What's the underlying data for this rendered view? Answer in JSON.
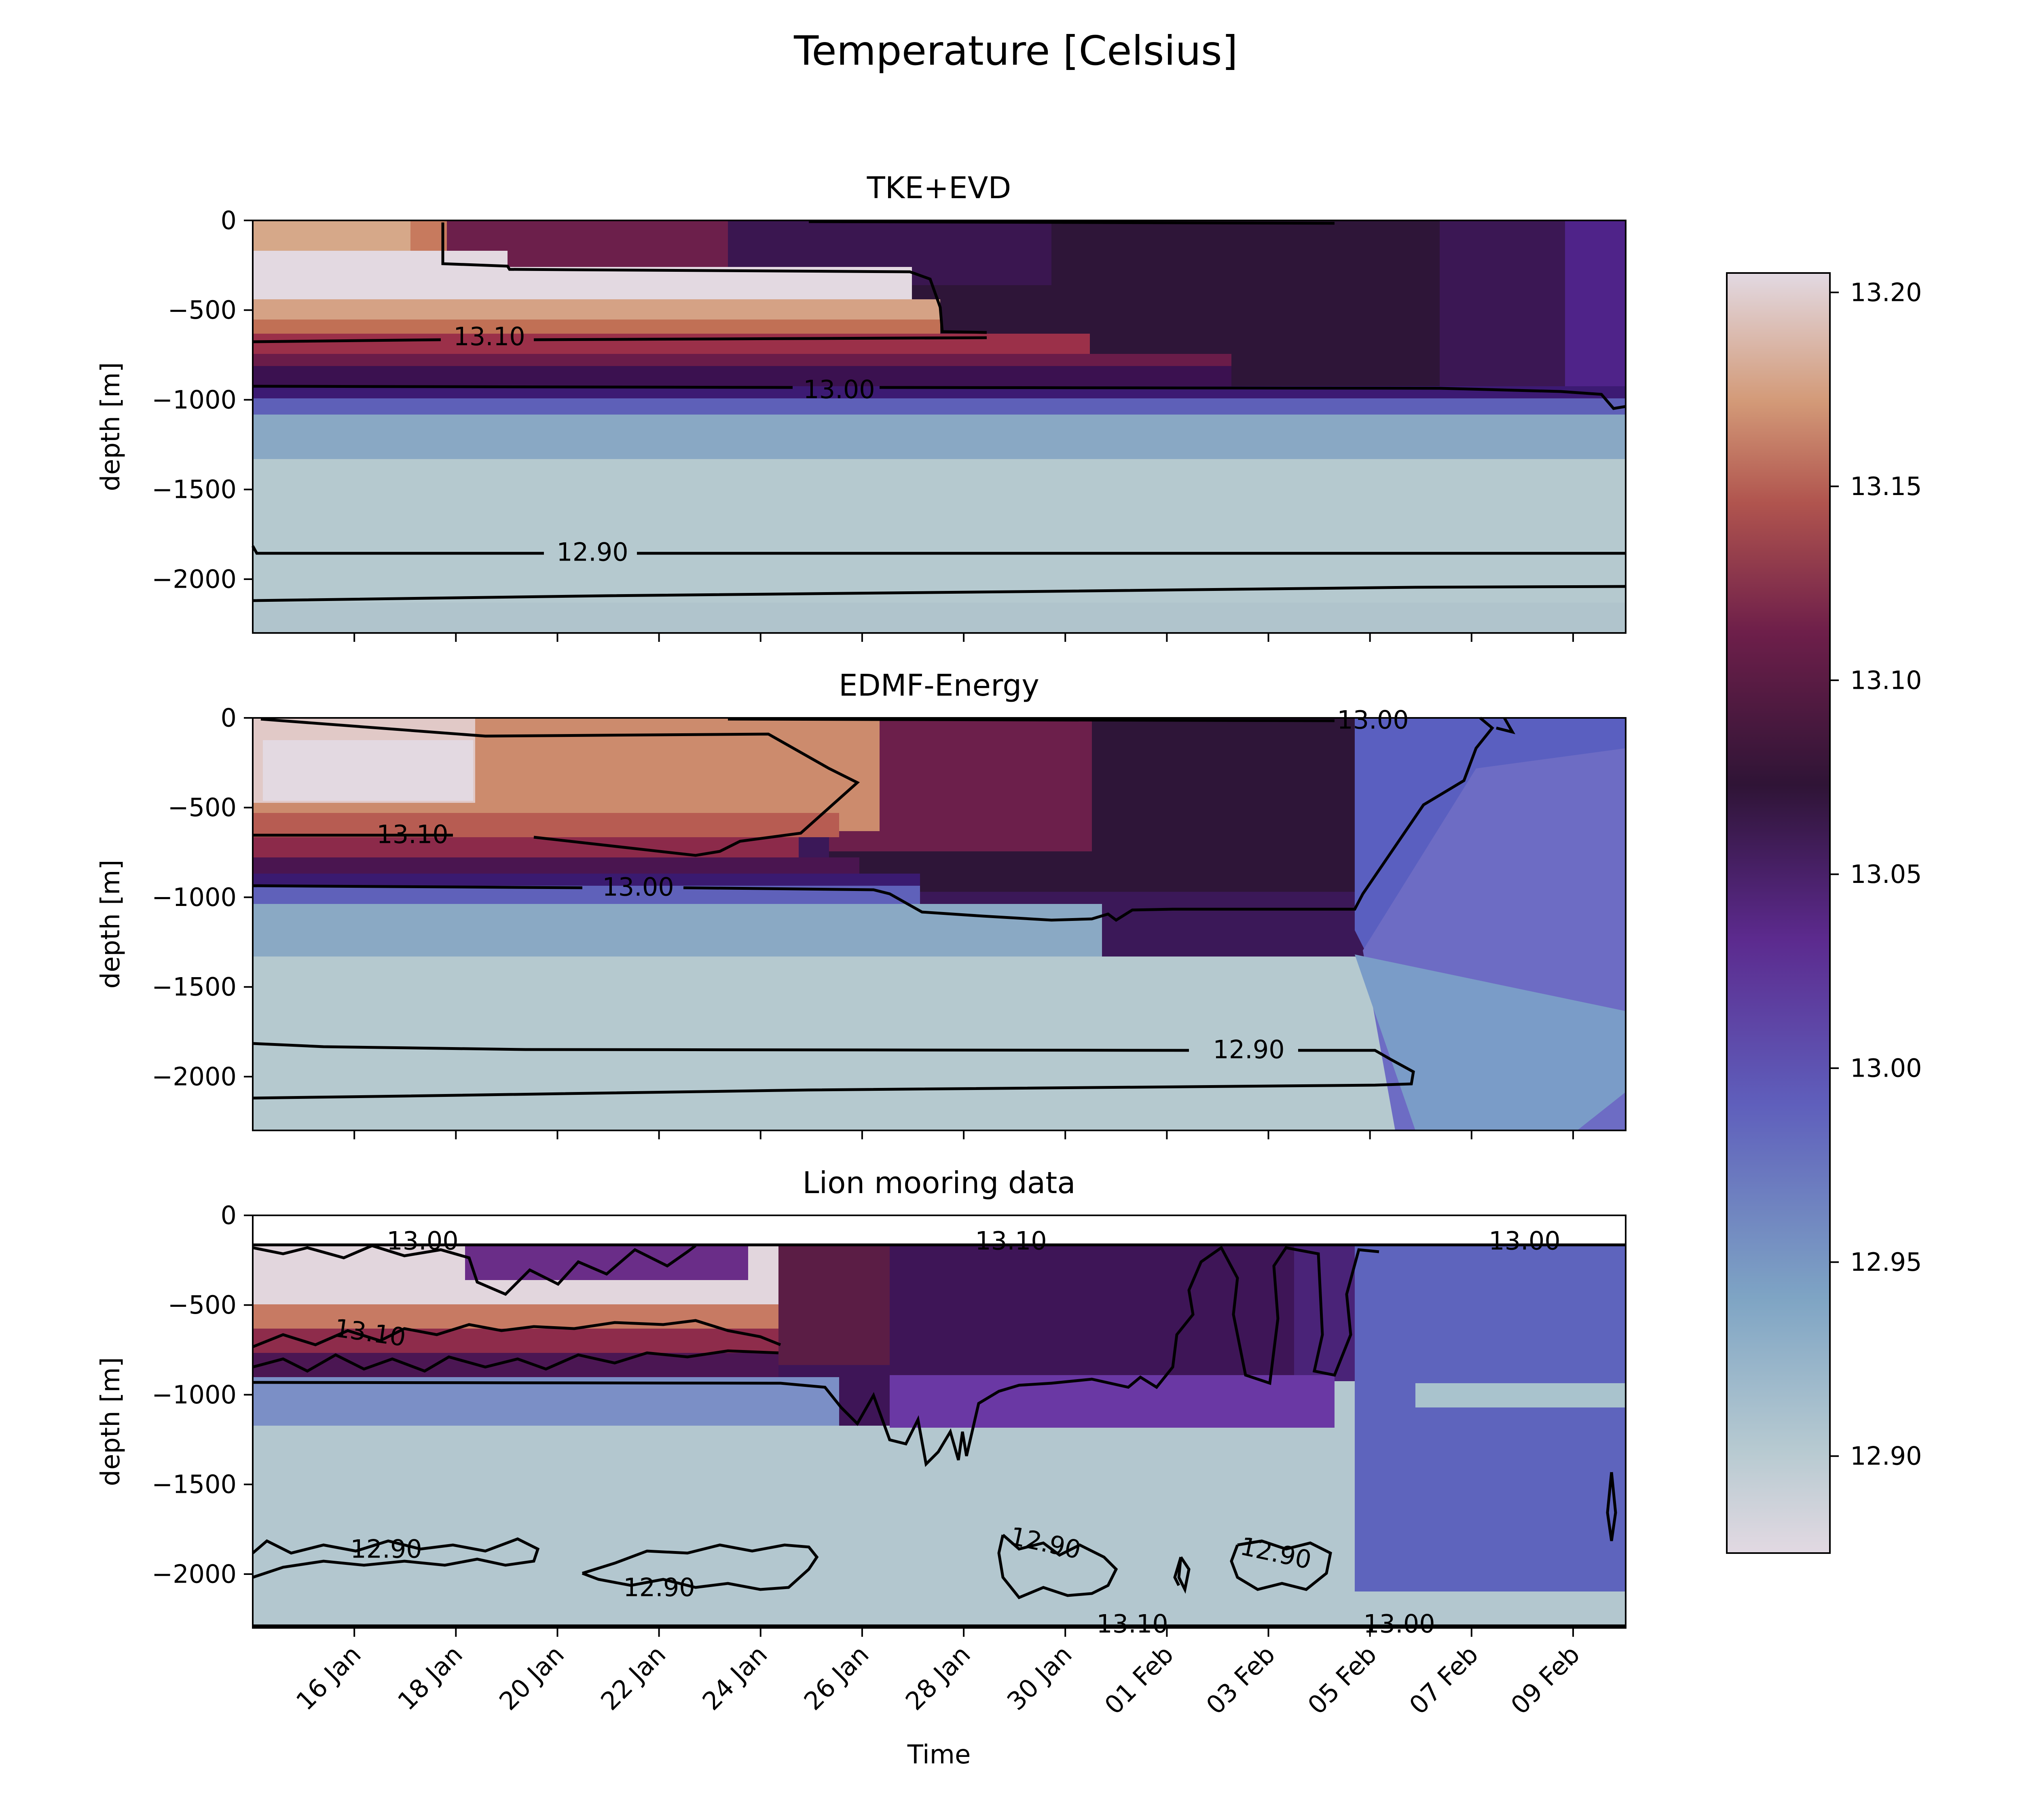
{
  "suptitle": "Temperature [Celsius]",
  "colormap": {
    "name": "twilight-like (light→blue→purple→dark→red→tan→light)"
  },
  "chart_data": [
    {
      "type": "heatmap",
      "title": "TKE+EVD",
      "xlabel": "",
      "ylabel": "depth [m]",
      "ylim": [
        -2300,
        0
      ],
      "yticks": [
        0,
        -500,
        -1000,
        -1500,
        -2000
      ],
      "ytick_labels": [
        "0",
        "−500",
        "−1000",
        "−1500",
        "−2000"
      ],
      "x_is_date": true,
      "contour_labels": [
        {
          "text": "13.10",
          "x": "2023-01-18 12:00",
          "y": -650
        },
        {
          "text": "13.00",
          "x": "2023-01-25 00:00",
          "y": -950
        },
        {
          "text": "12.90",
          "x": "2023-01-20 12:00",
          "y": -1840
        }
      ]
    },
    {
      "type": "heatmap",
      "title": "EDMF-Energy",
      "xlabel": "",
      "ylabel": "depth [m]",
      "ylim": [
        -2300,
        0
      ],
      "yticks": [
        0,
        -500,
        -1000,
        -1500,
        -2000
      ],
      "ytick_labels": [
        "0",
        "−500",
        "−1000",
        "−1500",
        "−2000"
      ],
      "x_is_date": true,
      "contour_labels": [
        {
          "text": "13.10",
          "x": "2023-01-17 00:00",
          "y": -650
        },
        {
          "text": "13.00",
          "x": "2023-01-21 12:00",
          "y": -950
        },
        {
          "text": "12.90",
          "x": "2023-02-02 18:00",
          "y": -1840
        },
        {
          "text": "13.00",
          "x": "2023-02-04 12:00",
          "y": 0
        }
      ]
    },
    {
      "type": "heatmap",
      "title": "Lion mooring data",
      "xlabel": "Time",
      "ylabel": "depth [m]",
      "ylim": [
        -2300,
        0
      ],
      "yticks": [
        0,
        -500,
        -1000,
        -1500,
        -2000
      ],
      "ytick_labels": [
        "0",
        "−500",
        "−1000",
        "−1500",
        "−2000"
      ],
      "x_is_date": true,
      "contour_labels": [
        {
          "text": "13.00",
          "x": "2023-01-17 12:00",
          "y": -150
        },
        {
          "text": "13.10",
          "x": "2023-01-28 12:00",
          "y": -150
        },
        {
          "text": "13.00",
          "x": "2023-02-08 00:00",
          "y": -150
        },
        {
          "text": "13.10",
          "x": "2023-01-16 12:00",
          "y": -650
        },
        {
          "text": "12.90",
          "x": "2023-01-17 12:00",
          "y": -1900
        },
        {
          "text": "12.90",
          "x": "2023-01-22 18:00",
          "y": -2080
        },
        {
          "text": "12.90",
          "x": "2023-01-29 12:00",
          "y": -1900
        },
        {
          "text": "12.90",
          "x": "2023-02-03 12:00",
          "y": -1900
        },
        {
          "text": "13.10",
          "x": "2023-01-31 12:00",
          "y": -2280
        },
        {
          "text": "13.00",
          "x": "2023-02-05 12:00",
          "y": -2280
        }
      ]
    }
  ],
  "x_axis": {
    "start": "2023-01-14 00:00",
    "end": "2023-02-09 00:00",
    "ticks": [
      "2023-01-16",
      "2023-01-18",
      "2023-01-20",
      "2023-01-22",
      "2023-01-24",
      "2023-01-26",
      "2023-01-28",
      "2023-01-30",
      "2023-02-01",
      "2023-02-03",
      "2023-02-05",
      "2023-02-07",
      "2023-02-09"
    ],
    "tick_labels": [
      "16 Jan",
      "18 Jan",
      "20 Jan",
      "22 Jan",
      "24 Jan",
      "26 Jan",
      "28 Jan",
      "30 Jan",
      "01 Feb",
      "03 Feb",
      "05 Feb",
      "07 Feb",
      "09 Feb"
    ]
  },
  "colorbar": {
    "min": 12.875,
    "max": 13.205,
    "ticks": [
      13.2,
      13.15,
      13.1,
      13.05,
      13.0,
      12.95,
      12.9
    ],
    "tick_labels": [
      "13.20",
      "13.15",
      "13.10",
      "13.05",
      "13.00",
      "12.95",
      "12.90"
    ]
  }
}
